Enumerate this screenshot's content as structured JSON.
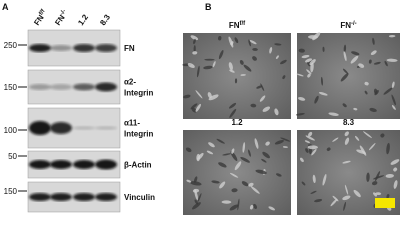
{
  "panels": [
    {
      "label": "A",
      "lanes": [
        {
          "base": "FN",
          "sup": "f/f"
        },
        {
          "base": "FN",
          "sup": "-/-"
        },
        {
          "base": "1.2"
        },
        {
          "base": "8.3"
        }
      ],
      "blots": [
        {
          "marker": 250,
          "protein": [
            "FN"
          ]
        },
        {
          "marker": 150,
          "protein": [
            "α2-",
            "Integrin"
          ]
        },
        {
          "marker": 100,
          "protein": [
            "α11-",
            "Integrin"
          ]
        },
        {
          "marker": 50,
          "protein": [
            "β-Actin"
          ]
        },
        {
          "marker": 150,
          "protein": [
            "Vinculin"
          ]
        }
      ]
    },
    {
      "label": "B",
      "images": [
        {
          "base": "FN",
          "sup": "f/f"
        },
        {
          "base": "FN",
          "sup": "-/-"
        },
        {
          "base": "1.2"
        },
        {
          "base": "8.3"
        }
      ]
    }
  ]
}
